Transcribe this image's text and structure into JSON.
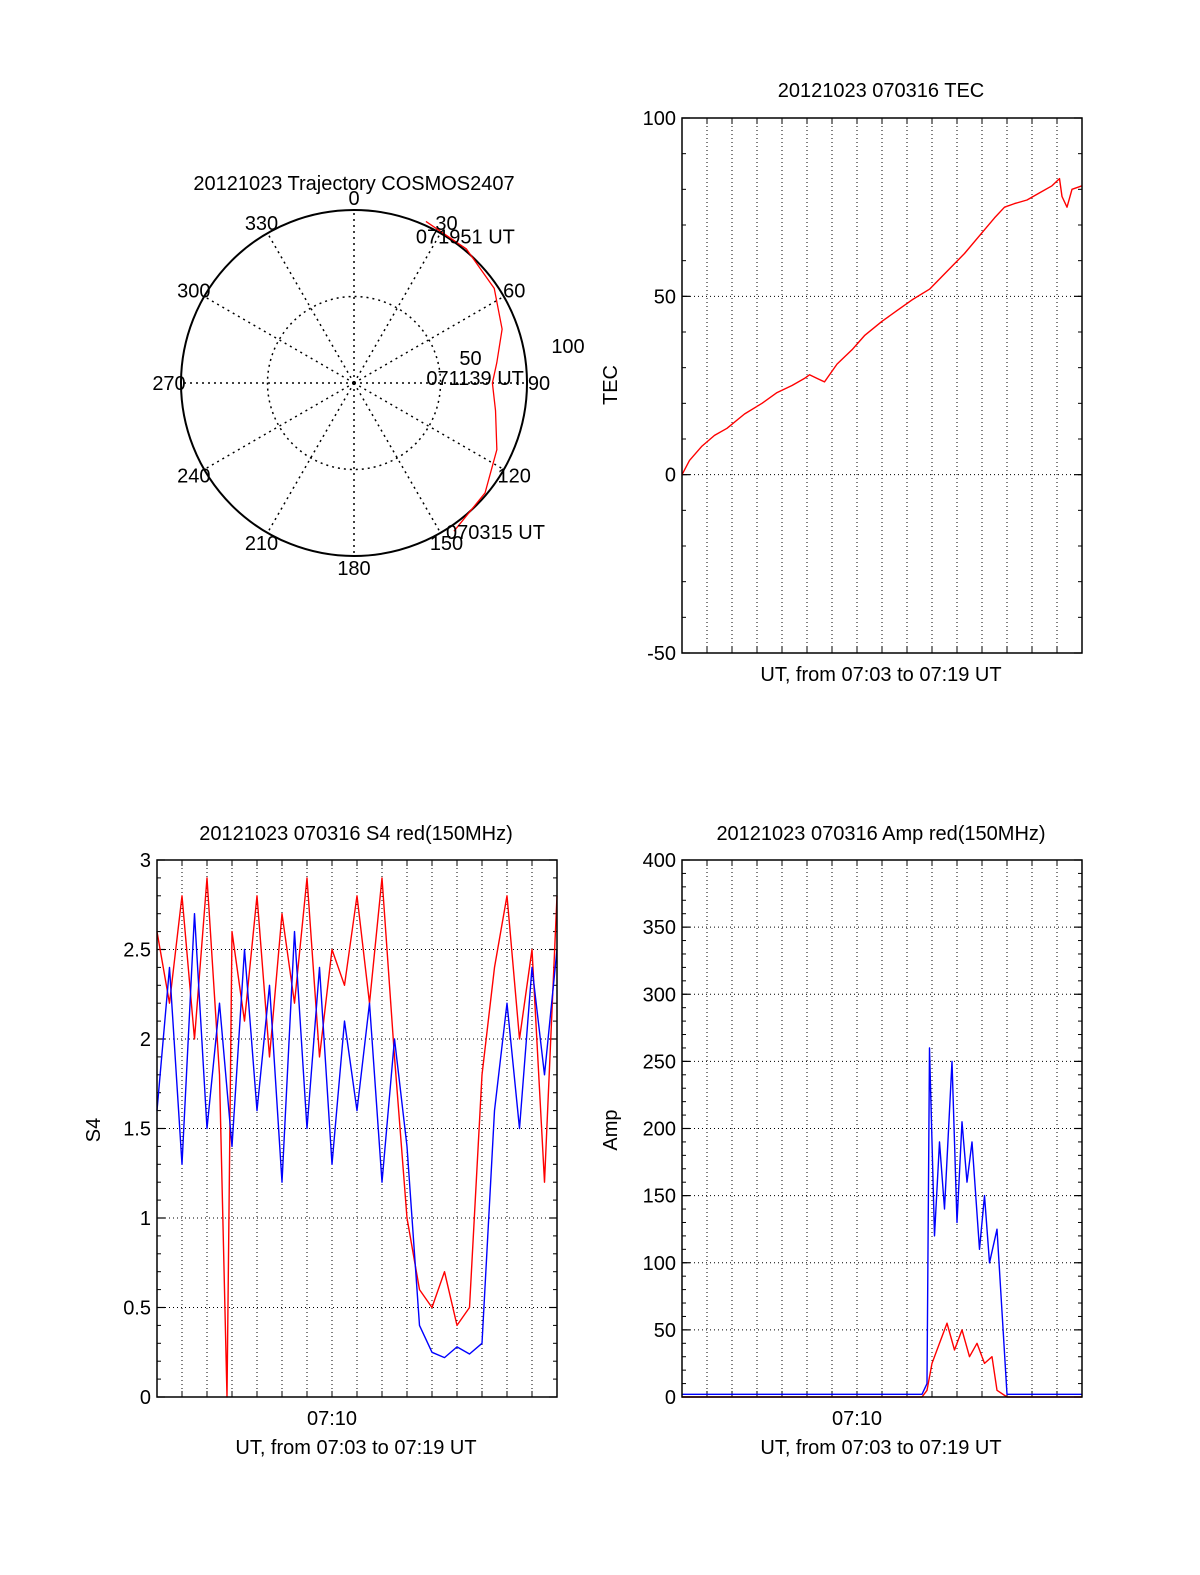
{
  "chart_data": [
    {
      "type": "polar",
      "title": "20121023 Trajectory COSMOS2407",
      "angle_labels": [
        "0",
        "30",
        "60",
        "90",
        "120",
        "150",
        "180",
        "210",
        "240",
        "270",
        "300",
        "330"
      ],
      "radial_labels": [
        "50",
        "100"
      ],
      "series": [
        {
          "color": "#ff0000",
          "azimuth": [
            24,
            40,
            56,
            70,
            82,
            90,
            101,
            115,
            130,
            146
          ],
          "zenith": [
            92,
            91,
            88,
            82,
            75,
            72,
            75,
            82,
            89,
            93
          ]
        }
      ],
      "annotations": [
        {
          "text": "071951 UT",
          "azimuth": 24,
          "zenith": 92
        },
        {
          "text": "071139 UT",
          "azimuth": 90,
          "zenith": 72
        },
        {
          "text": "070315 UT",
          "azimuth": 146,
          "zenith": 93
        }
      ]
    },
    {
      "type": "line",
      "title": "20121023 070316 TEC",
      "xlabel": "UT, from 07:03 to 07:19 UT",
      "ylabel": "TEC",
      "xlim": [
        0,
        16
      ],
      "ylim": [
        -50,
        100
      ],
      "y_ticks": [
        "-50",
        "0",
        "50",
        "100"
      ],
      "grid": true,
      "series": [
        {
          "color": "#ff0000",
          "x": [
            0,
            0.3,
            0.8,
            1.3,
            1.8,
            2.5,
            3.2,
            3.8,
            4.4,
            4.9,
            5.1,
            5.4,
            5.7,
            6.2,
            6.8,
            7.3,
            8.0,
            8.6,
            9.2,
            9.9,
            10.6,
            11.3,
            11.9,
            12.5,
            12.9,
            13.3,
            13.8,
            14.3,
            14.8,
            15.1,
            15.2,
            15.4,
            15.6,
            16
          ],
          "y": [
            0,
            4,
            8,
            11,
            13,
            17,
            20,
            23,
            25,
            27,
            28,
            27,
            26,
            31,
            35,
            39,
            43,
            46,
            49,
            52,
            57,
            62,
            67,
            72,
            75,
            76,
            77,
            79,
            81,
            83,
            78,
            75,
            80,
            81
          ]
        }
      ]
    },
    {
      "type": "line",
      "title": "20121023 070316 S4 red(150MHz)",
      "xlabel": "UT, from 07:03 to 07:19 UT",
      "ylabel": "S4",
      "xlim": [
        0,
        16
      ],
      "ylim": [
        0,
        3
      ],
      "y_ticks": [
        "0",
        "0.5",
        "1",
        "1.5",
        "2",
        "2.5",
        "3"
      ],
      "x_ticks": [
        "07:10"
      ],
      "grid": true,
      "series": [
        {
          "color": "#ff0000",
          "x": [
            0,
            0.5,
            1.0,
            1.5,
            2.0,
            2.5,
            2.8,
            3.0,
            3.5,
            4.0,
            4.5,
            5.0,
            5.5,
            6.0,
            6.5,
            7.0,
            7.5,
            8.0,
            8.5,
            9.0,
            9.5,
            10.0,
            10.5,
            11.0,
            11.5,
            12.0,
            12.5,
            13.0,
            13.5,
            14.0,
            14.5,
            15.0,
            15.5,
            16.0
          ],
          "y": [
            2.6,
            2.2,
            2.8,
            2.0,
            2.9,
            1.8,
            0.0,
            2.6,
            2.1,
            2.8,
            1.9,
            2.7,
            2.2,
            2.9,
            1.9,
            2.5,
            2.3,
            2.8,
            2.2,
            2.9,
            1.9,
            1.0,
            0.6,
            0.5,
            0.7,
            0.4,
            0.5,
            1.8,
            2.4,
            2.8,
            2.0,
            2.5,
            1.2,
            2.8
          ]
        },
        {
          "color": "#0000ff",
          "x": [
            0,
            0.5,
            1.0,
            1.5,
            2.0,
            2.5,
            3.0,
            3.5,
            4.0,
            4.5,
            5.0,
            5.5,
            6.0,
            6.5,
            7.0,
            7.5,
            8.0,
            8.5,
            9.0,
            9.5,
            10.0,
            10.5,
            11.0,
            11.5,
            12.0,
            12.5,
            13.0,
            13.5,
            14.0,
            14.5,
            15.0,
            15.5,
            16.0
          ],
          "y": [
            1.6,
            2.4,
            1.3,
            2.7,
            1.5,
            2.2,
            1.4,
            2.5,
            1.6,
            2.3,
            1.2,
            2.6,
            1.5,
            2.4,
            1.3,
            2.1,
            1.6,
            2.2,
            1.2,
            2.0,
            1.4,
            0.4,
            0.25,
            0.22,
            0.28,
            0.24,
            0.3,
            1.6,
            2.2,
            1.5,
            2.4,
            1.8,
            2.5
          ]
        }
      ]
    },
    {
      "type": "line",
      "title": "20121023 070316 Amp red(150MHz)",
      "xlabel": "UT, from 07:03 to 07:19 UT",
      "ylabel": "Amp",
      "xlim": [
        0,
        16
      ],
      "ylim": [
        0,
        400
      ],
      "y_ticks": [
        "0",
        "50",
        "100",
        "150",
        "200",
        "250",
        "300",
        "350",
        "400"
      ],
      "x_ticks": [
        "07:10"
      ],
      "grid": true,
      "series": [
        {
          "color": "#0000ff",
          "x": [
            0,
            2,
            4,
            6,
            8,
            9.6,
            9.8,
            9.9,
            10.1,
            10.3,
            10.5,
            10.8,
            11.0,
            11.2,
            11.4,
            11.6,
            11.9,
            12.1,
            12.3,
            12.6,
            13,
            14,
            16
          ],
          "y": [
            2,
            2,
            2,
            2,
            2,
            2,
            10,
            260,
            120,
            190,
            140,
            250,
            130,
            205,
            160,
            190,
            110,
            150,
            100,
            125,
            2,
            2,
            2
          ]
        },
        {
          "color": "#ff0000",
          "x": [
            0,
            9.6,
            9.8,
            10.0,
            10.3,
            10.6,
            10.9,
            11.2,
            11.5,
            11.8,
            12.1,
            12.4,
            12.6,
            13,
            16
          ],
          "y": [
            0,
            0,
            5,
            25,
            40,
            55,
            35,
            50,
            30,
            40,
            25,
            30,
            5,
            0,
            0
          ]
        }
      ]
    }
  ]
}
